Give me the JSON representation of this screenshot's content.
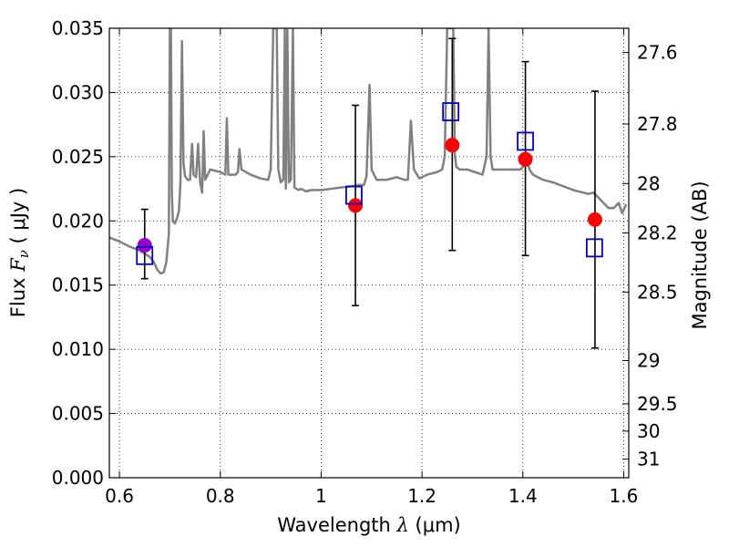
{
  "chart_data": {
    "type": "scatter",
    "xlabel": "Wavelength",
    "xlabel_symbol": "λ",
    "xlabel_unit": "(μm)",
    "ylabel": "Flux",
    "ylabel_symbol": "F",
    "ylabel_subscript": "ν",
    "ylabel_unit": "( μJy )",
    "y2label": "Magnitude (AB)",
    "xlim": [
      0.58,
      1.61
    ],
    "ylim": [
      0.0,
      0.035
    ],
    "grid": true,
    "xticks": [
      0.6,
      0.8,
      1.0,
      1.2,
      1.4,
      1.6
    ],
    "xtick_labels": [
      "0.6",
      "0.8",
      "1",
      "1.2",
      "1.4",
      "1.6"
    ],
    "yticks": [
      0.0,
      0.005,
      0.01,
      0.015,
      0.02,
      0.025,
      0.03,
      0.035
    ],
    "ytick_labels": [
      "0.000",
      "0.005",
      "0.010",
      "0.015",
      "0.020",
      "0.025",
      "0.030",
      "0.035"
    ],
    "y2ticks": [
      27.6,
      27.8,
      28.0,
      28.2,
      28.5,
      29.0,
      29.5,
      30.0,
      31.0
    ],
    "y2tick_labels": [
      "27.6",
      "27.8",
      "28",
      "28.2",
      "28.5",
      "29",
      "29.5",
      "30",
      "31"
    ],
    "observed": [
      {
        "x": 0.65,
        "y": 0.0181,
        "err_low": 0.0155,
        "err_high": 0.0209,
        "color": "#9900cc"
      },
      {
        "x": 1.068,
        "y": 0.0212,
        "err_low": 0.0134,
        "err_high": 0.029,
        "color": "#ff0000"
      },
      {
        "x": 1.26,
        "y": 0.0259,
        "err_low": 0.0177,
        "err_high": 0.0342,
        "color": "#ff0000"
      },
      {
        "x": 1.405,
        "y": 0.0248,
        "err_low": 0.0173,
        "err_high": 0.0324,
        "color": "#ff0000"
      },
      {
        "x": 1.543,
        "y": 0.0201,
        "err_low": 0.0101,
        "err_high": 0.0301,
        "color": "#ff0000"
      }
    ],
    "model_photometry": {
      "color": "#0000cc",
      "points": [
        {
          "x": 0.65,
          "y": 0.0173
        },
        {
          "x": 1.065,
          "y": 0.022
        },
        {
          "x": 1.257,
          "y": 0.0285
        },
        {
          "x": 1.405,
          "y": 0.0262
        },
        {
          "x": 1.542,
          "y": 0.0179
        }
      ]
    },
    "spectrum": {
      "color": "#808080",
      "points": [
        [
          0.58,
          0.0187
        ],
        [
          0.6,
          0.0184
        ],
        [
          0.62,
          0.018
        ],
        [
          0.64,
          0.0177
        ],
        [
          0.66,
          0.0172
        ],
        [
          0.668,
          0.0168
        ],
        [
          0.675,
          0.0162
        ],
        [
          0.682,
          0.0159
        ],
        [
          0.688,
          0.016
        ],
        [
          0.693,
          0.0168
        ],
        [
          0.698,
          0.019
        ],
        [
          0.7,
          0.035
        ],
        [
          0.702,
          0.035
        ],
        [
          0.704,
          0.022
        ],
        [
          0.706,
          0.02
        ],
        [
          0.71,
          0.0198
        ],
        [
          0.715,
          0.0203
        ],
        [
          0.718,
          0.0208
        ],
        [
          0.721,
          0.023
        ],
        [
          0.724,
          0.034
        ],
        [
          0.727,
          0.0245
        ],
        [
          0.73,
          0.0235
        ],
        [
          0.735,
          0.0232
        ],
        [
          0.74,
          0.0232
        ],
        [
          0.744,
          0.026
        ],
        [
          0.747,
          0.0236
        ],
        [
          0.752,
          0.0234
        ],
        [
          0.756,
          0.026
        ],
        [
          0.76,
          0.023
        ],
        [
          0.764,
          0.0222
        ],
        [
          0.767,
          0.027
        ],
        [
          0.77,
          0.0232
        ],
        [
          0.775,
          0.0236
        ],
        [
          0.78,
          0.024
        ],
        [
          0.8,
          0.0238
        ],
        [
          0.81,
          0.0236
        ],
        [
          0.813,
          0.028
        ],
        [
          0.816,
          0.0236
        ],
        [
          0.83,
          0.0236
        ],
        [
          0.835,
          0.0238
        ],
        [
          0.838,
          0.0256
        ],
        [
          0.842,
          0.024
        ],
        [
          0.86,
          0.0236
        ],
        [
          0.88,
          0.0233
        ],
        [
          0.895,
          0.0232
        ],
        [
          0.9,
          0.024
        ],
        [
          0.905,
          0.035
        ],
        [
          0.912,
          0.035
        ],
        [
          0.915,
          0.024
        ],
        [
          0.92,
          0.023
        ],
        [
          0.925,
          0.0232
        ],
        [
          0.928,
          0.035
        ],
        [
          0.93,
          0.0225
        ],
        [
          0.933,
          0.035
        ],
        [
          0.936,
          0.023
        ],
        [
          0.94,
          0.0232
        ],
        [
          0.944,
          0.035
        ],
        [
          0.947,
          0.0226
        ],
        [
          0.955,
          0.0224
        ],
        [
          0.96,
          0.0225
        ],
        [
          0.97,
          0.0223
        ],
        [
          0.98,
          0.0224
        ],
        [
          1.0,
          0.0224
        ],
        [
          1.02,
          0.0225
        ],
        [
          1.04,
          0.0226
        ],
        [
          1.06,
          0.0227
        ],
        [
          1.075,
          0.0228
        ],
        [
          1.085,
          0.0228
        ],
        [
          1.09,
          0.0235
        ],
        [
          1.096,
          0.0306
        ],
        [
          1.1,
          0.024
        ],
        [
          1.11,
          0.0232
        ],
        [
          1.13,
          0.0232
        ],
        [
          1.15,
          0.0234
        ],
        [
          1.165,
          0.0232
        ],
        [
          1.172,
          0.0232
        ],
        [
          1.178,
          0.0278
        ],
        [
          1.184,
          0.024
        ],
        [
          1.195,
          0.0233
        ],
        [
          1.21,
          0.0236
        ],
        [
          1.23,
          0.0238
        ],
        [
          1.24,
          0.024
        ],
        [
          1.245,
          0.025
        ],
        [
          1.25,
          0.035
        ],
        [
          1.262,
          0.035
        ],
        [
          1.265,
          0.0252
        ],
        [
          1.268,
          0.0242
        ],
        [
          1.275,
          0.024
        ],
        [
          1.29,
          0.024
        ],
        [
          1.305,
          0.0238
        ],
        [
          1.32,
          0.0236
        ],
        [
          1.328,
          0.025
        ],
        [
          1.332,
          0.035
        ],
        [
          1.336,
          0.025
        ],
        [
          1.34,
          0.024
        ],
        [
          1.36,
          0.024
        ],
        [
          1.38,
          0.024
        ],
        [
          1.395,
          0.024
        ],
        [
          1.4,
          0.0242
        ],
        [
          1.408,
          0.025
        ],
        [
          1.413,
          0.024
        ],
        [
          1.42,
          0.0236
        ],
        [
          1.44,
          0.0232
        ],
        [
          1.46,
          0.023
        ],
        [
          1.48,
          0.0227
        ],
        [
          1.5,
          0.0224
        ],
        [
          1.52,
          0.0222
        ],
        [
          1.53,
          0.0221
        ],
        [
          1.54,
          0.0222
        ],
        [
          1.55,
          0.0218
        ],
        [
          1.56,
          0.0214
        ],
        [
          1.57,
          0.021
        ],
        [
          1.58,
          0.021
        ],
        [
          1.59,
          0.0214
        ],
        [
          1.597,
          0.0206
        ],
        [
          1.605,
          0.0213
        ]
      ]
    }
  }
}
